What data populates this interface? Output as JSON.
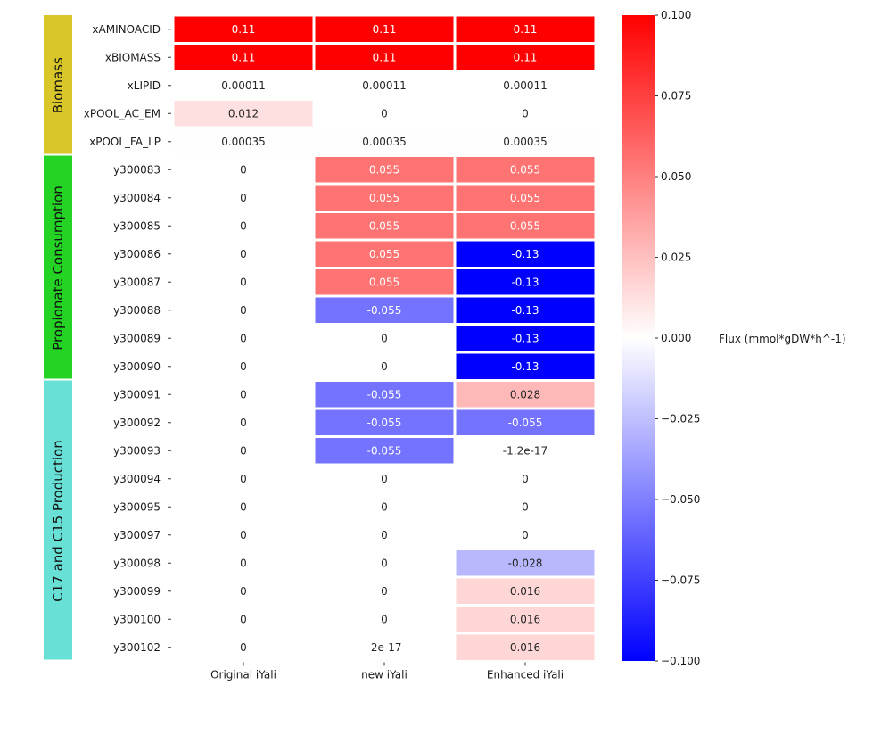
{
  "chart_data": {
    "type": "heatmap",
    "title": "",
    "xlabel": "",
    "ylabel": "",
    "columns": [
      "Original iYali",
      "new iYali",
      "Enhanced iYali"
    ],
    "rows": [
      "xAMINOACID",
      "xBIOMASS",
      "xLIPID",
      "xPOOL_AC_EM",
      "xPOOL_FA_LP",
      "y300083",
      "y300084",
      "y300085",
      "y300086",
      "y300087",
      "y300088",
      "y300089",
      "y300090",
      "y300091",
      "y300092",
      "y300093",
      "y300094",
      "y300095",
      "y300097",
      "y300098",
      "y300099",
      "y300100",
      "y300102"
    ],
    "values": [
      [
        0.11,
        0.11,
        0.11
      ],
      [
        0.11,
        0.11,
        0.11
      ],
      [
        0.00011,
        0.00011,
        0.00011
      ],
      [
        0.012,
        0,
        0
      ],
      [
        0.00035,
        0.00035,
        0.00035
      ],
      [
        0,
        0.055,
        0.055
      ],
      [
        0,
        0.055,
        0.055
      ],
      [
        0,
        0.055,
        0.055
      ],
      [
        0,
        0.055,
        -0.13
      ],
      [
        0,
        0.055,
        -0.13
      ],
      [
        0,
        -0.055,
        -0.13
      ],
      [
        0,
        0,
        -0.13
      ],
      [
        0,
        0,
        -0.13
      ],
      [
        0,
        -0.055,
        0.028
      ],
      [
        0,
        -0.055,
        -0.055
      ],
      [
        0,
        -0.055,
        -1.2e-17
      ],
      [
        0,
        0,
        0
      ],
      [
        0,
        0,
        0
      ],
      [
        0,
        0,
        0
      ],
      [
        0,
        0,
        -0.028
      ],
      [
        0,
        0,
        0.016
      ],
      [
        0,
        0,
        0.016
      ],
      [
        0,
        -2e-17,
        0.016
      ]
    ],
    "cell_labels": [
      [
        "0.11",
        "0.11",
        "0.11"
      ],
      [
        "0.11",
        "0.11",
        "0.11"
      ],
      [
        "0.00011",
        "0.00011",
        "0.00011"
      ],
      [
        "0.012",
        "0",
        "0"
      ],
      [
        "0.00035",
        "0.00035",
        "0.00035"
      ],
      [
        "0",
        "0.055",
        "0.055"
      ],
      [
        "0",
        "0.055",
        "0.055"
      ],
      [
        "0",
        "0.055",
        "0.055"
      ],
      [
        "0",
        "0.055",
        "-0.13"
      ],
      [
        "0",
        "0.055",
        "-0.13"
      ],
      [
        "0",
        "-0.055",
        "-0.13"
      ],
      [
        "0",
        "0",
        "-0.13"
      ],
      [
        "0",
        "0",
        "-0.13"
      ],
      [
        "0",
        "-0.055",
        "0.028"
      ],
      [
        "0",
        "-0.055",
        "-0.055"
      ],
      [
        "0",
        "-0.055",
        "-1.2e-17"
      ],
      [
        "0",
        "0",
        "0"
      ],
      [
        "0",
        "0",
        "0"
      ],
      [
        "0",
        "0",
        "0"
      ],
      [
        "0",
        "0",
        "-0.028"
      ],
      [
        "0",
        "0",
        "0.016"
      ],
      [
        "0",
        "0",
        "0.016"
      ],
      [
        "0",
        "-2e-17",
        "0.016"
      ]
    ],
    "colormap": "bwr",
    "color_range": [
      -0.1,
      0.1
    ],
    "colorbar": {
      "label": "Flux (mmol*gDW*h^-1)",
      "ticks": [
        0.1,
        0.075,
        0.05,
        0.025,
        0.0,
        -0.025,
        -0.05,
        -0.075,
        -0.1
      ],
      "tick_labels": [
        "0.100",
        "0.075",
        "0.050",
        "0.025",
        "0.000",
        "−0.025",
        "−0.050",
        "−0.075",
        "−0.100"
      ]
    },
    "groups": [
      {
        "label": "Biomass",
        "start_row": 0,
        "end_row": 4,
        "color": "#d9c62a"
      },
      {
        "label": "Propionate Consumption",
        "start_row": 5,
        "end_row": 12,
        "color": "#24d324"
      },
      {
        "label": "C17 and C15 Production",
        "start_row": 13,
        "end_row": 22,
        "color": "#68e0d6"
      }
    ],
    "colors": {
      "low": "#0000ff",
      "mid": "#ffffff",
      "high": "#ff0000"
    }
  }
}
